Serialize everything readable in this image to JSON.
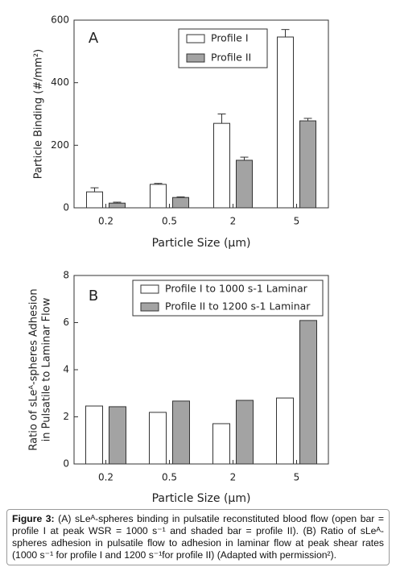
{
  "chart_data": [
    {
      "type": "bar",
      "panel_label": "A",
      "ylabel": [
        "Particle Binding (#/mm²)"
      ],
      "xlabel": "Particle Size (μm)",
      "categories": [
        "0.2",
        "0.5",
        "2",
        "5"
      ],
      "series": [
        {
          "name": "Profile I",
          "color": "#ffffff",
          "values": [
            51,
            75,
            270,
            546
          ],
          "errors": [
            13,
            3,
            30,
            24
          ]
        },
        {
          "name": "Profile II",
          "color": "#a3a3a3",
          "values": [
            15,
            33,
            152,
            278
          ],
          "errors": [
            3,
            2,
            10,
            8
          ]
        }
      ],
      "ylim": [
        0,
        600
      ],
      "yticks": [
        0,
        200,
        400,
        600
      ],
      "grid": false,
      "legend": "top-right"
    },
    {
      "type": "bar",
      "panel_label": "B",
      "ylabel": [
        "Ratio of sLeᴬ-spheres Adhesion",
        "in Pulsatile to  Laminar Flow"
      ],
      "xlabel": "Particle Size (μm)",
      "categories": [
        "0.2",
        "0.5",
        "2",
        "5"
      ],
      "series": [
        {
          "name": "Profile I  to 1000 s-1 Laminar",
          "color": "#ffffff",
          "values": [
            2.46,
            2.19,
            1.71,
            2.8
          ]
        },
        {
          "name": "Profile II to 1200 s-1 Laminar",
          "color": "#a3a3a3",
          "values": [
            2.43,
            2.67,
            2.7,
            6.09
          ]
        }
      ],
      "ylim": [
        0,
        8
      ],
      "yticks": [
        0,
        2,
        4,
        6,
        8
      ],
      "grid": false,
      "legend": "top"
    }
  ],
  "caption": {
    "label": "Figure 3:",
    "text": "(A) sLeᴬ-spheres binding in pulsatile reconstituted blood flow (open bar = profile I at peak WSR = 1000 s⁻¹ and shaded bar = profile II). (B) Ratio of sLeᴬ-spheres adhesion in pulsatile flow to adhesion in laminar flow at peak shear rates (1000 s⁻¹ for profile I and 1200 s⁻¹for profile II) (Adapted with permission²)."
  }
}
